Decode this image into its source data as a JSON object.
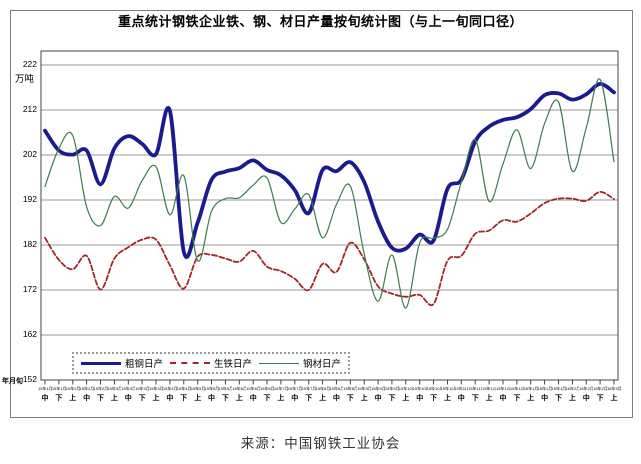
{
  "source_caption": "来源：中国钢铁工业协会",
  "chart_data": {
    "type": "line",
    "title": "重点统计钢铁企业铁、钢、材日产量按旬统计图（与上一旬同口径）",
    "ylabel": "万吨",
    "x_corner_label": "年月旬",
    "ylim": [
      152,
      225
    ],
    "grid": true,
    "legend_position": "bottom-left-inside",
    "y_ticks": [
      222,
      212,
      202,
      192,
      182,
      172,
      162,
      152
    ],
    "x_month_labels": [
      "15年1月",
      "15年1月",
      "15年2月",
      "15年2月",
      "15年2月",
      "15年3月",
      "15年3月",
      "15年3月",
      "15年4月",
      "15年4月",
      "15年4月",
      "15年5月",
      "15年5月",
      "15年5月",
      "15年6月",
      "15年6月",
      "15年6月",
      "15年7月",
      "15年7月",
      "15年7月",
      "15年8月",
      "15年8月",
      "15年8月",
      "15年9月",
      "15年9月",
      "15年9月",
      "15年10月",
      "15年10月",
      "15年10月",
      "15年11月",
      "15年11月",
      "15年11月",
      "15年12月",
      "15年12月",
      "15年12月",
      "16年1月",
      "16年1月",
      "16年1月",
      "16年2月",
      "16年2月",
      "16年2月",
      "16年3月"
    ],
    "x_period_labels": [
      "中",
      "下",
      "上",
      "中",
      "下",
      "上",
      "中",
      "下",
      "上",
      "中",
      "下",
      "上",
      "中",
      "下",
      "上",
      "中",
      "下",
      "上",
      "中",
      "下",
      "上",
      "中",
      "下",
      "上",
      "中",
      "下",
      "上",
      "中",
      "下",
      "上",
      "中",
      "下",
      "上",
      "中",
      "下",
      "上",
      "中",
      "下",
      "上",
      "中",
      "下",
      "上"
    ],
    "series": [
      {
        "name": "粗钢日产",
        "color": "#1b1b8f",
        "line": "solid",
        "width": 3.8,
        "values": [
          207.4,
          203,
          202.1,
          203,
          195.5,
          203.5,
          206.2,
          204.5,
          202.2,
          211.8,
          180.5,
          187,
          196.5,
          198.3,
          199.1,
          200.8,
          198.7,
          197.5,
          194.2,
          189.1,
          198.7,
          198.4,
          200.4,
          196,
          187.2,
          181.4,
          181.2,
          184.3,
          183,
          194.5,
          196.5,
          205,
          208.3,
          209.8,
          210.4,
          212.2,
          215.3,
          215.7,
          214.3,
          215.5,
          217.8,
          215.9
        ]
      },
      {
        "name": "生铁日产",
        "color": "#a12626",
        "line": "dashed",
        "width": 1.8,
        "values": [
          183.6,
          178.7,
          176.6,
          179.6,
          172.1,
          179,
          181.5,
          183.2,
          183.2,
          177.5,
          172.3,
          179.4,
          179.8,
          179,
          178.3,
          180.7,
          177.2,
          176.2,
          174.5,
          172,
          177.8,
          176,
          182.5,
          178.8,
          172.8,
          171.2,
          170.5,
          170.9,
          168.9,
          178.5,
          179.6,
          184.5,
          185.2,
          187.5,
          187.2,
          189,
          191.3,
          192.3,
          192.3,
          191.8,
          193.8,
          192.2
        ]
      },
      {
        "name": "钢材日产",
        "color": "#3e7b4f",
        "line": "solid",
        "width": 1.2,
        "values": [
          195,
          203.5,
          206.3,
          190.5,
          186.3,
          192.8,
          190.2,
          196.3,
          199.4,
          188.7,
          197.4,
          178.5,
          189.5,
          192.3,
          192.5,
          195.3,
          196.9,
          187,
          190,
          193.2,
          183.6,
          191,
          195.1,
          180,
          169.5,
          179.8,
          168,
          182.5,
          183.5,
          185.5,
          196,
          205.4,
          191.7,
          200,
          207.6,
          199,
          209,
          213.8,
          198.4,
          208,
          218.8,
          200.5
        ]
      }
    ]
  }
}
